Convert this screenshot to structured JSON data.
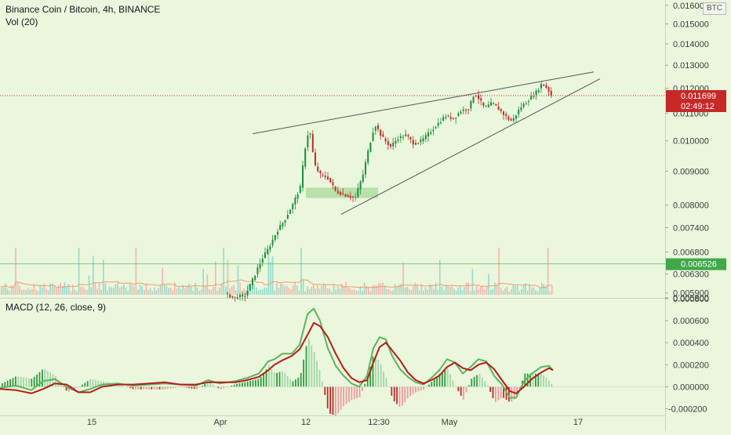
{
  "header": {
    "title": "Binance Coin / Bitcoin, 4h, BINANCE",
    "volume_label": "Vol (20)",
    "macd_label": "MACD (12, 26, close, 9)",
    "currency_badge": "BTC"
  },
  "price_axis": {
    "ticks": [
      "0.016000",
      "0.015000",
      "0.014000",
      "0.013000",
      "0.012000",
      "0.011000",
      "0.010000",
      "0.009000",
      "0.008000",
      "0.007400",
      "0.006800",
      "0.006300",
      "0.005900",
      "0.005800"
    ],
    "scale": "log"
  },
  "macd_axis": {
    "ticks": [
      "0.000800",
      "0.000600",
      "0.000400",
      "0.000200",
      "0.000000",
      "-0.000200"
    ]
  },
  "time_axis": {
    "ticks": [
      "15",
      "Apr",
      "12",
      "12:30",
      "May",
      "17"
    ]
  },
  "markers": {
    "last_price": "0.011699",
    "countdown": "02:49:12",
    "level_price": "0.006526"
  },
  "colors": {
    "background": "#eaf7dd",
    "up": "#1d8c3a",
    "down": "#c62828",
    "volume_up": "#7fd3c5",
    "volume_down": "#f0a8a0",
    "volume_ma": "#f59a6e",
    "macd_line": "#5fb35f",
    "signal_line": "#b71c1c",
    "trendline": "#555555",
    "level_marker": "#3fa84a",
    "last_price_marker": "#c62828"
  },
  "chart_data": {
    "type": "candlestick",
    "symbol": "BNB/BTC",
    "interval": "4h",
    "exchange": "BINANCE",
    "y_scale": "log",
    "ylim": [
      0.0058,
      0.0163
    ],
    "x_ticks": [
      "15",
      "Apr",
      "12",
      "12:30",
      "May",
      "17"
    ],
    "price_path": [
      [
        0,
        0.00582
      ],
      [
        8,
        0.00583
      ],
      [
        16,
        0.00582
      ],
      [
        24,
        0.00583
      ],
      [
        32,
        0.00582
      ],
      [
        40,
        0.00583
      ],
      [
        48,
        0.00582
      ],
      [
        56,
        0.00583
      ],
      [
        64,
        0.00582
      ],
      [
        72,
        0.00583
      ],
      [
        80,
        0.00582
      ],
      [
        88,
        0.00583
      ],
      [
        96,
        0.00582
      ],
      [
        104,
        0.00583
      ],
      [
        112,
        0.00582
      ],
      [
        120,
        0.00583
      ],
      [
        128,
        0.00582
      ],
      [
        136,
        0.00583
      ],
      [
        144,
        0.00582
      ],
      [
        152,
        0.00583
      ],
      [
        160,
        0.00582
      ],
      [
        168,
        0.00583
      ],
      [
        176,
        0.00582
      ],
      [
        184,
        0.00583
      ],
      [
        192,
        0.00582
      ],
      [
        200,
        0.00583
      ],
      [
        208,
        0.00582
      ],
      [
        216,
        0.00583
      ],
      [
        224,
        0.00582
      ],
      [
        232,
        0.00583
      ],
      [
        240,
        0.00582
      ],
      [
        248,
        0.00583
      ],
      [
        256,
        0.00582
      ],
      [
        264,
        0.00583
      ],
      [
        272,
        0.00582
      ],
      [
        280,
        0.00583
      ],
      [
        288,
        0.0059
      ],
      [
        300,
        0.0058
      ],
      [
        315,
        0.00585
      ],
      [
        325,
        0.0062
      ],
      [
        335,
        0.0066
      ],
      [
        345,
        0.0069
      ],
      [
        355,
        0.0073
      ],
      [
        365,
        0.0076
      ],
      [
        375,
        0.008
      ],
      [
        385,
        0.0085
      ],
      [
        393,
        0.0101
      ],
      [
        397,
        0.0104
      ],
      [
        403,
        0.0092
      ],
      [
        410,
        0.0089
      ],
      [
        420,
        0.0088
      ],
      [
        430,
        0.0084
      ],
      [
        440,
        0.0083
      ],
      [
        455,
        0.0082
      ],
      [
        465,
        0.0089
      ],
      [
        472,
        0.0097
      ],
      [
        480,
        0.0106
      ],
      [
        490,
        0.0101
      ],
      [
        500,
        0.0098
      ],
      [
        510,
        0.0101
      ],
      [
        520,
        0.0102
      ],
      [
        530,
        0.0099
      ],
      [
        540,
        0.01
      ],
      [
        550,
        0.0103
      ],
      [
        560,
        0.0106
      ],
      [
        570,
        0.0109
      ],
      [
        580,
        0.0108
      ],
      [
        590,
        0.0111
      ],
      [
        600,
        0.0112
      ],
      [
        607,
        0.0118
      ],
      [
        612,
        0.0116
      ],
      [
        620,
        0.0112
      ],
      [
        630,
        0.0114
      ],
      [
        640,
        0.0111
      ],
      [
        650,
        0.0108
      ],
      [
        655,
        0.0107
      ],
      [
        665,
        0.0112
      ],
      [
        675,
        0.0115
      ],
      [
        685,
        0.0118
      ],
      [
        693,
        0.0122
      ],
      [
        700,
        0.012
      ],
      [
        705,
        0.0117
      ]
    ],
    "trendlines": [
      {
        "name": "upper",
        "points": [
          [
            322,
            0.01025
          ],
          [
            757,
            0.0127
          ]
        ]
      },
      {
        "name": "lower",
        "points": [
          [
            435,
            0.00775
          ],
          [
            765,
            0.0124
          ]
        ]
      }
    ],
    "support_zone": {
      "x": [
        390,
        482
      ],
      "y": [
        0.0082,
        0.0085
      ]
    },
    "horizontal_levels": [
      {
        "name": "last_price",
        "value": 0.011699,
        "style": "dotted"
      },
      {
        "name": "level",
        "value": 0.006526,
        "style": "solid"
      }
    ],
    "macd": {
      "params": [
        12,
        26,
        9
      ],
      "ylim": [
        -0.00026,
        0.0008
      ],
      "macd_line": [
        [
          0,
          -1e-05
        ],
        [
          20,
          1e-05
        ],
        [
          40,
          -3e-05
        ],
        [
          55,
          5e-05
        ],
        [
          70,
          7e-05
        ],
        [
          85,
          0.0
        ],
        [
          100,
          -5e-05
        ],
        [
          115,
          -2e-05
        ],
        [
          130,
          2e-05
        ],
        [
          150,
          3e-05
        ],
        [
          170,
          1e-05
        ],
        [
          190,
          2e-05
        ],
        [
          210,
          3e-05
        ],
        [
          230,
          2e-05
        ],
        [
          250,
          1e-05
        ],
        [
          265,
          6e-05
        ],
        [
          280,
          3e-05
        ],
        [
          300,
          5e-05
        ],
        [
          315,
          8e-05
        ],
        [
          330,
          0.00012
        ],
        [
          342,
          0.00023
        ],
        [
          350,
          0.00025
        ],
        [
          360,
          0.0003
        ],
        [
          372,
          0.0003
        ],
        [
          382,
          0.00038
        ],
        [
          392,
          0.00066
        ],
        [
          400,
          0.00071
        ],
        [
          408,
          0.0006
        ],
        [
          418,
          0.00035
        ],
        [
          428,
          0.00019
        ],
        [
          438,
          0.0001
        ],
        [
          448,
          3e-05
        ],
        [
          458,
          0.0
        ],
        [
          468,
          0.0001
        ],
        [
          476,
          0.00035
        ],
        [
          484,
          0.00045
        ],
        [
          492,
          0.00043
        ],
        [
          500,
          0.00028
        ],
        [
          510,
          0.00016
        ],
        [
          520,
          9e-05
        ],
        [
          530,
          4e-05
        ],
        [
          540,
          2e-05
        ],
        [
          550,
          8e-05
        ],
        [
          560,
          0.00015
        ],
        [
          570,
          0.00025
        ],
        [
          580,
          0.00022
        ],
        [
          590,
          0.00012
        ],
        [
          600,
          0.00018
        ],
        [
          610,
          0.00025
        ],
        [
          620,
          0.00023
        ],
        [
          630,
          0.0001
        ],
        [
          640,
          2e-05
        ],
        [
          650,
          -0.0001
        ],
        [
          658,
          -0.0001
        ],
        [
          668,
          5e-05
        ],
        [
          678,
          0.00012
        ],
        [
          690,
          0.00018
        ],
        [
          700,
          0.00019
        ],
        [
          705,
          0.00015
        ]
      ],
      "signal_line": [
        [
          0,
          -2e-05
        ],
        [
          20,
          -3e-05
        ],
        [
          40,
          -6e-05
        ],
        [
          55,
          -2e-05
        ],
        [
          70,
          3e-05
        ],
        [
          85,
          2e-05
        ],
        [
          100,
          -5e-05
        ],
        [
          115,
          -5e-05
        ],
        [
          130,
          0.0
        ],
        [
          150,
          2e-05
        ],
        [
          170,
          2e-05
        ],
        [
          190,
          3e-05
        ],
        [
          210,
          4e-05
        ],
        [
          230,
          2e-05
        ],
        [
          250,
          2e-05
        ],
        [
          265,
          4e-05
        ],
        [
          280,
          4e-05
        ],
        [
          300,
          4e-05
        ],
        [
          315,
          6e-05
        ],
        [
          330,
          9e-05
        ],
        [
          342,
          0.00015
        ],
        [
          350,
          0.0002
        ],
        [
          360,
          0.00024
        ],
        [
          372,
          0.00028
        ],
        [
          382,
          0.00034
        ],
        [
          392,
          0.00047
        ],
        [
          400,
          0.00058
        ],
        [
          408,
          0.00055
        ],
        [
          418,
          0.00045
        ],
        [
          428,
          0.0003
        ],
        [
          438,
          0.00017
        ],
        [
          448,
          8e-05
        ],
        [
          458,
          4e-05
        ],
        [
          468,
          6e-05
        ],
        [
          476,
          0.00022
        ],
        [
          484,
          0.00036
        ],
        [
          492,
          0.0004
        ],
        [
          500,
          0.00033
        ],
        [
          510,
          0.00024
        ],
        [
          520,
          0.00013
        ],
        [
          530,
          6e-05
        ],
        [
          540,
          3e-05
        ],
        [
          550,
          6e-05
        ],
        [
          560,
          0.0001
        ],
        [
          570,
          0.00018
        ],
        [
          580,
          0.00022
        ],
        [
          590,
          0.00017
        ],
        [
          600,
          0.00015
        ],
        [
          610,
          0.0002
        ],
        [
          620,
          0.00022
        ],
        [
          630,
          0.00016
        ],
        [
          640,
          6e-05
        ],
        [
          650,
          -4e-05
        ],
        [
          658,
          -6e-05
        ],
        [
          668,
          0.0
        ],
        [
          678,
          7e-05
        ],
        [
          690,
          0.00013
        ],
        [
          700,
          0.00017
        ],
        [
          705,
          0.00015
        ]
      ]
    },
    "volume": {
      "ma_period": 20
    }
  }
}
